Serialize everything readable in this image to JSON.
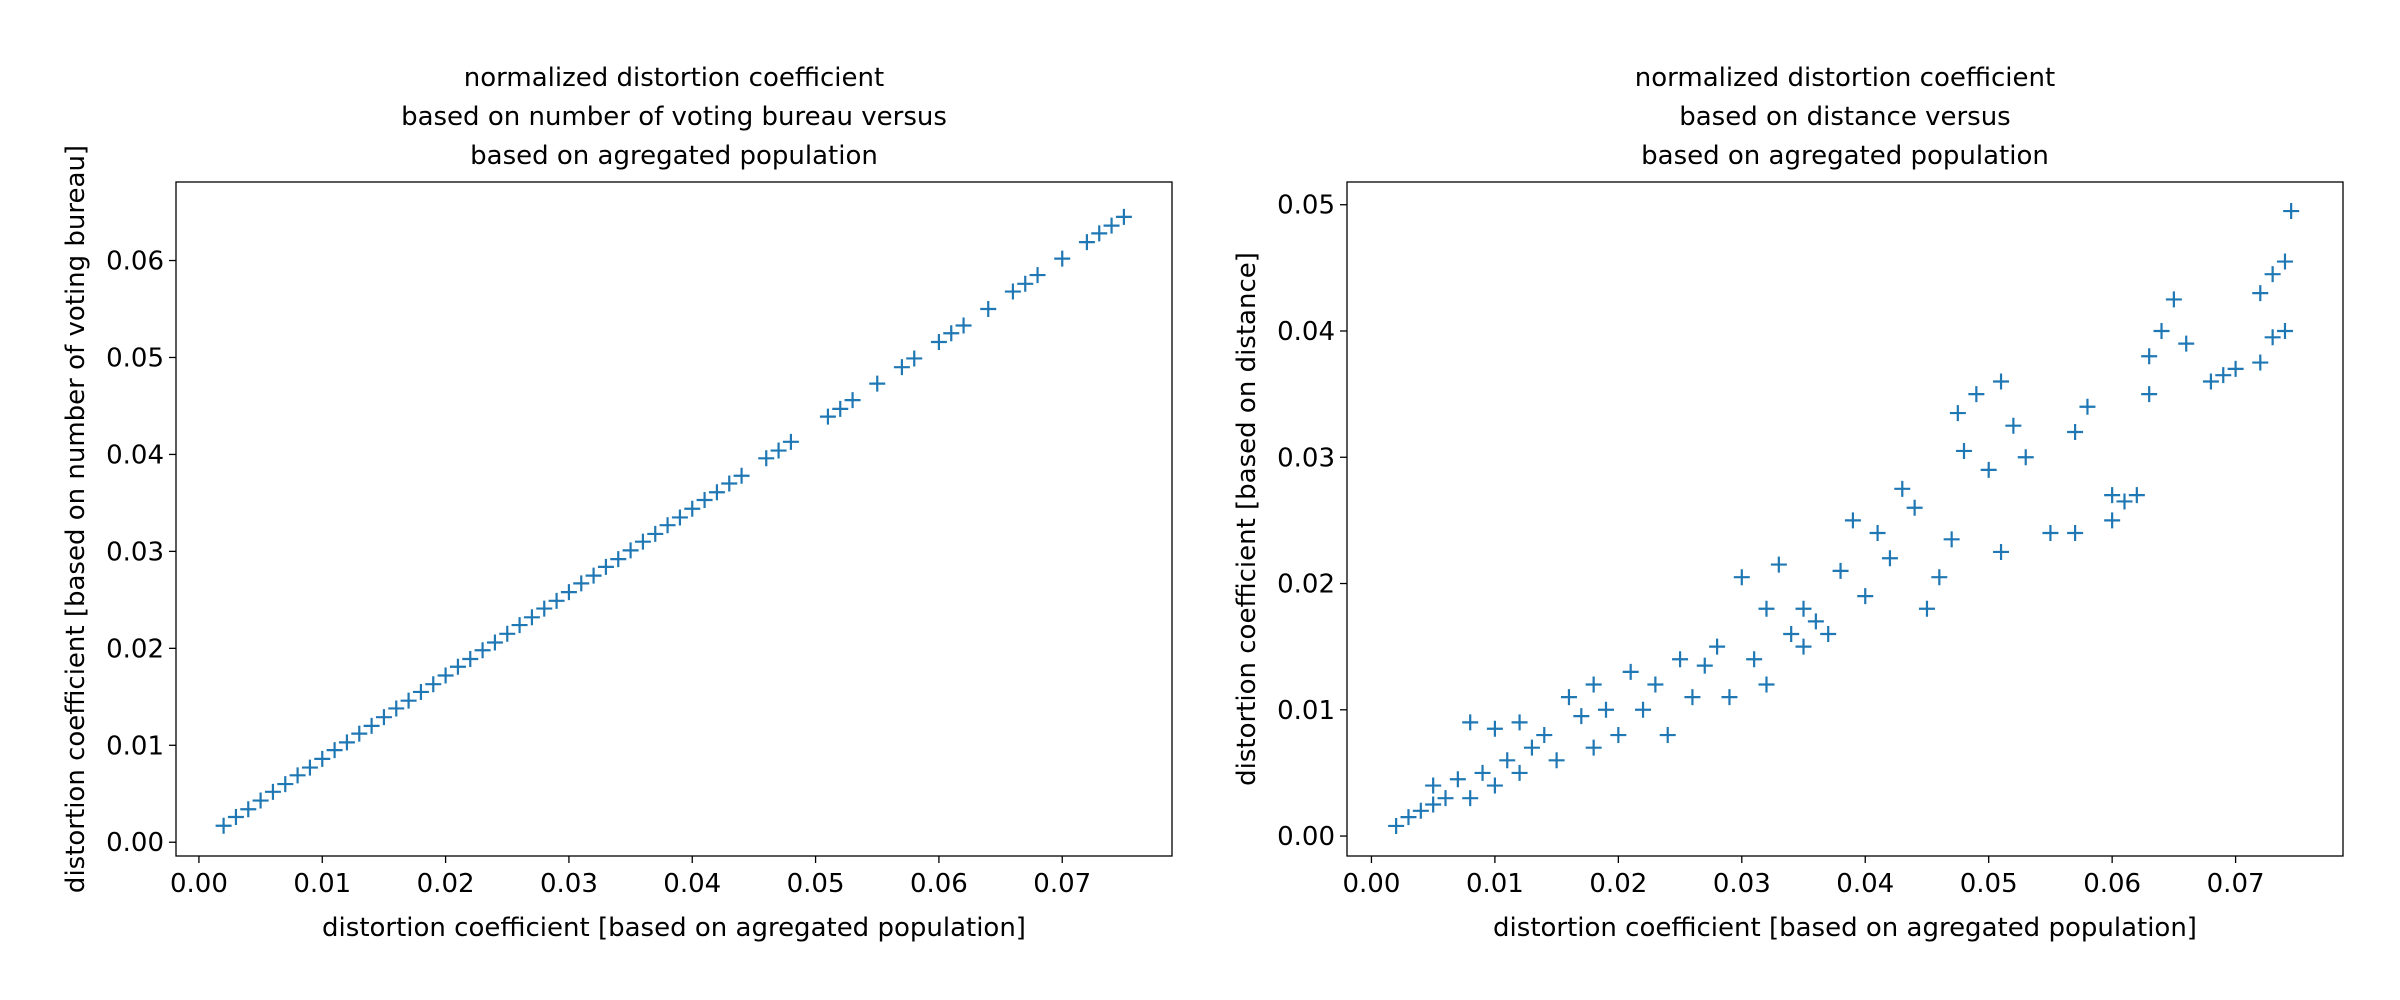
{
  "chart_data": [
    {
      "type": "scatter",
      "title": [
        "normalized distortion coefficient",
        "based on number of voting bureau versus",
        "based on agregated population"
      ],
      "x_label": "distortion coefficient [based on agregated population]",
      "y_label": "distortion coefficient [based on number of voting bureau]",
      "marker": "+",
      "color": "#1f77b4",
      "xlim": [
        -0.00186,
        0.0789
      ],
      "ylim": [
        -0.00142,
        0.0681
      ],
      "xticks": [
        {
          "value": 0,
          "label": "0.00"
        },
        0.01,
        0.02,
        0.03,
        0.04,
        0.05,
        0.06,
        0.07
      ],
      "yticks": [
        {
          "value": 0,
          "label": "0.00"
        },
        0.01,
        0.02,
        0.03,
        0.04,
        0.05,
        0.06
      ],
      "x": [
        0.002,
        0.003,
        0.004,
        0.005,
        0.006,
        0.007,
        0.008,
        0.009,
        0.01,
        0.011,
        0.012,
        0.013,
        0.014,
        0.015,
        0.016,
        0.017,
        0.018,
        0.019,
        0.02,
        0.021,
        0.022,
        0.023,
        0.024,
        0.025,
        0.026,
        0.027,
        0.028,
        0.029,
        0.03,
        0.031,
        0.032,
        0.033,
        0.034,
        0.035,
        0.036,
        0.037,
        0.038,
        0.039,
        0.04,
        0.041,
        0.042,
        0.043,
        0.044,
        0.046,
        0.047,
        0.048,
        0.051,
        0.052,
        0.053,
        0.055,
        0.057,
        0.058,
        0.06,
        0.061,
        0.062,
        0.064,
        0.066,
        0.067,
        0.068,
        0.07,
        0.072,
        0.073,
        0.074,
        0.075
      ],
      "values": [
        0.0017,
        0.0026,
        0.0034,
        0.0043,
        0.0052,
        0.006,
        0.0069,
        0.0077,
        0.0086,
        0.0095,
        0.0103,
        0.0112,
        0.012,
        0.0129,
        0.0138,
        0.0146,
        0.0155,
        0.0163,
        0.0172,
        0.0181,
        0.0189,
        0.0198,
        0.0206,
        0.0215,
        0.0224,
        0.0232,
        0.0241,
        0.0249,
        0.0258,
        0.0267,
        0.0275,
        0.0284,
        0.0292,
        0.0301,
        0.031,
        0.0318,
        0.0327,
        0.0335,
        0.0344,
        0.0353,
        0.0361,
        0.037,
        0.0378,
        0.0396,
        0.0404,
        0.0413,
        0.0439,
        0.0447,
        0.0456,
        0.0473,
        0.049,
        0.0499,
        0.0516,
        0.0525,
        0.0533,
        0.055,
        0.0568,
        0.0576,
        0.0585,
        0.0602,
        0.0619,
        0.0628,
        0.0636,
        0.0645
      ]
    },
    {
      "type": "scatter",
      "title": [
        "normalized distortion coefficient",
        "based on distance versus",
        "based on agregated population"
      ],
      "x_label": "distortion coefficient [based on agregated population]",
      "y_label": "distortion coefficient [based on distance]",
      "marker": "+",
      "color": "#1f77b4",
      "xlim": [
        -0.00198,
        0.0787
      ],
      "ylim": [
        -0.00158,
        0.0518
      ],
      "xticks": [
        {
          "value": 0,
          "label": "0.00"
        },
        0.01,
        0.02,
        0.03,
        0.04,
        0.05,
        0.06,
        0.07
      ],
      "yticks": [
        {
          "value": 0,
          "label": "0.00"
        },
        0.01,
        0.02,
        0.03,
        0.04,
        0.05
      ],
      "x": [
        0.002,
        0.003,
        0.004,
        0.005,
        0.005,
        0.006,
        0.007,
        0.008,
        0.008,
        0.009,
        0.01,
        0.01,
        0.011,
        0.012,
        0.012,
        0.013,
        0.014,
        0.015,
        0.016,
        0.017,
        0.018,
        0.018,
        0.019,
        0.02,
        0.021,
        0.022,
        0.023,
        0.024,
        0.025,
        0.026,
        0.027,
        0.028,
        0.029,
        0.03,
        0.031,
        0.032,
        0.032,
        0.033,
        0.034,
        0.035,
        0.035,
        0.036,
        0.037,
        0.038,
        0.039,
        0.04,
        0.041,
        0.042,
        0.043,
        0.044,
        0.045,
        0.046,
        0.047,
        0.0475,
        0.048,
        0.049,
        0.05,
        0.051,
        0.051,
        0.052,
        0.053,
        0.055,
        0.057,
        0.057,
        0.058,
        0.06,
        0.06,
        0.061,
        0.062,
        0.063,
        0.063,
        0.064,
        0.065,
        0.066,
        0.068,
        0.069,
        0.07,
        0.072,
        0.072,
        0.073,
        0.073,
        0.074,
        0.074,
        0.0745
      ],
      "values": [
        0.0008,
        0.0015,
        0.002,
        0.0025,
        0.004,
        0.003,
        0.0045,
        0.009,
        0.003,
        0.005,
        0.0085,
        0.004,
        0.006,
        0.009,
        0.005,
        0.007,
        0.008,
        0.006,
        0.011,
        0.0095,
        0.012,
        0.007,
        0.01,
        0.008,
        0.013,
        0.01,
        0.012,
        0.008,
        0.014,
        0.011,
        0.0135,
        0.015,
        0.011,
        0.0205,
        0.014,
        0.018,
        0.012,
        0.0215,
        0.016,
        0.015,
        0.018,
        0.017,
        0.016,
        0.021,
        0.025,
        0.019,
        0.024,
        0.022,
        0.0275,
        0.026,
        0.018,
        0.0205,
        0.0235,
        0.0335,
        0.0305,
        0.035,
        0.029,
        0.036,
        0.0225,
        0.0325,
        0.03,
        0.024,
        0.032,
        0.024,
        0.034,
        0.027,
        0.025,
        0.0265,
        0.027,
        0.035,
        0.038,
        0.04,
        0.0425,
        0.039,
        0.036,
        0.0365,
        0.037,
        0.0375,
        0.043,
        0.0445,
        0.0395,
        0.04,
        0.0455,
        0.0495
      ]
    }
  ]
}
